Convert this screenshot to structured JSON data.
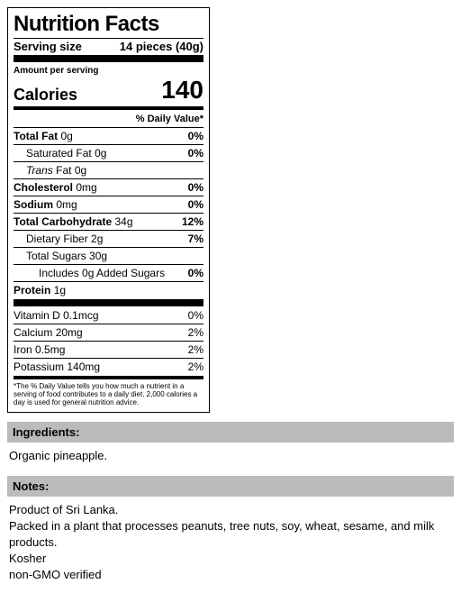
{
  "panel": {
    "title": "Nutrition Facts",
    "serving_label": "Serving size",
    "serving_value": "14 pieces (40g)",
    "amount_per": "Amount per serving",
    "calories_label": "Calories",
    "calories_value": "140",
    "dv_header": "% Daily Value*",
    "nutrients": {
      "total_fat": {
        "label": "Total Fat",
        "amount": "0g",
        "dv": "0%"
      },
      "sat_fat": {
        "label": "Saturated Fat",
        "amount": "0g",
        "dv": "0%"
      },
      "trans_fat": {
        "label_pre": "Trans",
        "label_post": " Fat",
        "amount": "0g"
      },
      "cholesterol": {
        "label": "Cholesterol",
        "amount": "0mg",
        "dv": "0%"
      },
      "sodium": {
        "label": "Sodium",
        "amount": "0mg",
        "dv": "0%"
      },
      "carb": {
        "label": "Total Carbohydrate",
        "amount": "34g",
        "dv": "12%"
      },
      "fiber": {
        "label": "Dietary Fiber",
        "amount": "2g",
        "dv": "7%"
      },
      "sugars": {
        "label": "Total Sugars",
        "amount": "30g"
      },
      "added_sugars": {
        "label": "Includes 0g Added Sugars",
        "dv": "0%"
      },
      "protein": {
        "label": "Protein",
        "amount": "1g"
      }
    },
    "vitamins": {
      "vitd": {
        "label": "Vitamin D",
        "amount": "0.1mcg",
        "dv": "0%"
      },
      "calcium": {
        "label": "Calcium",
        "amount": "20mg",
        "dv": "2%"
      },
      "iron": {
        "label": "Iron",
        "amount": "0.5mg",
        "dv": "2%"
      },
      "potassium": {
        "label": "Potassium",
        "amount": "140mg",
        "dv": "2%"
      }
    },
    "footnote": "*The % Daily Value tells you how much a nutrient in a serving of food contributes to a daily diet. 2,000 calories a day is used for general nutrition advice."
  },
  "ingredients": {
    "header": "Ingredients:",
    "body": "Organic pineapple."
  },
  "notes": {
    "header": "Notes:",
    "line1": "Product of Sri Lanka.",
    "line2": "Packed in a plant that processes peanuts, tree nuts, soy, wheat, sesame, and milk products.",
    "line3": "Kosher",
    "line4": "non-GMO verified"
  }
}
